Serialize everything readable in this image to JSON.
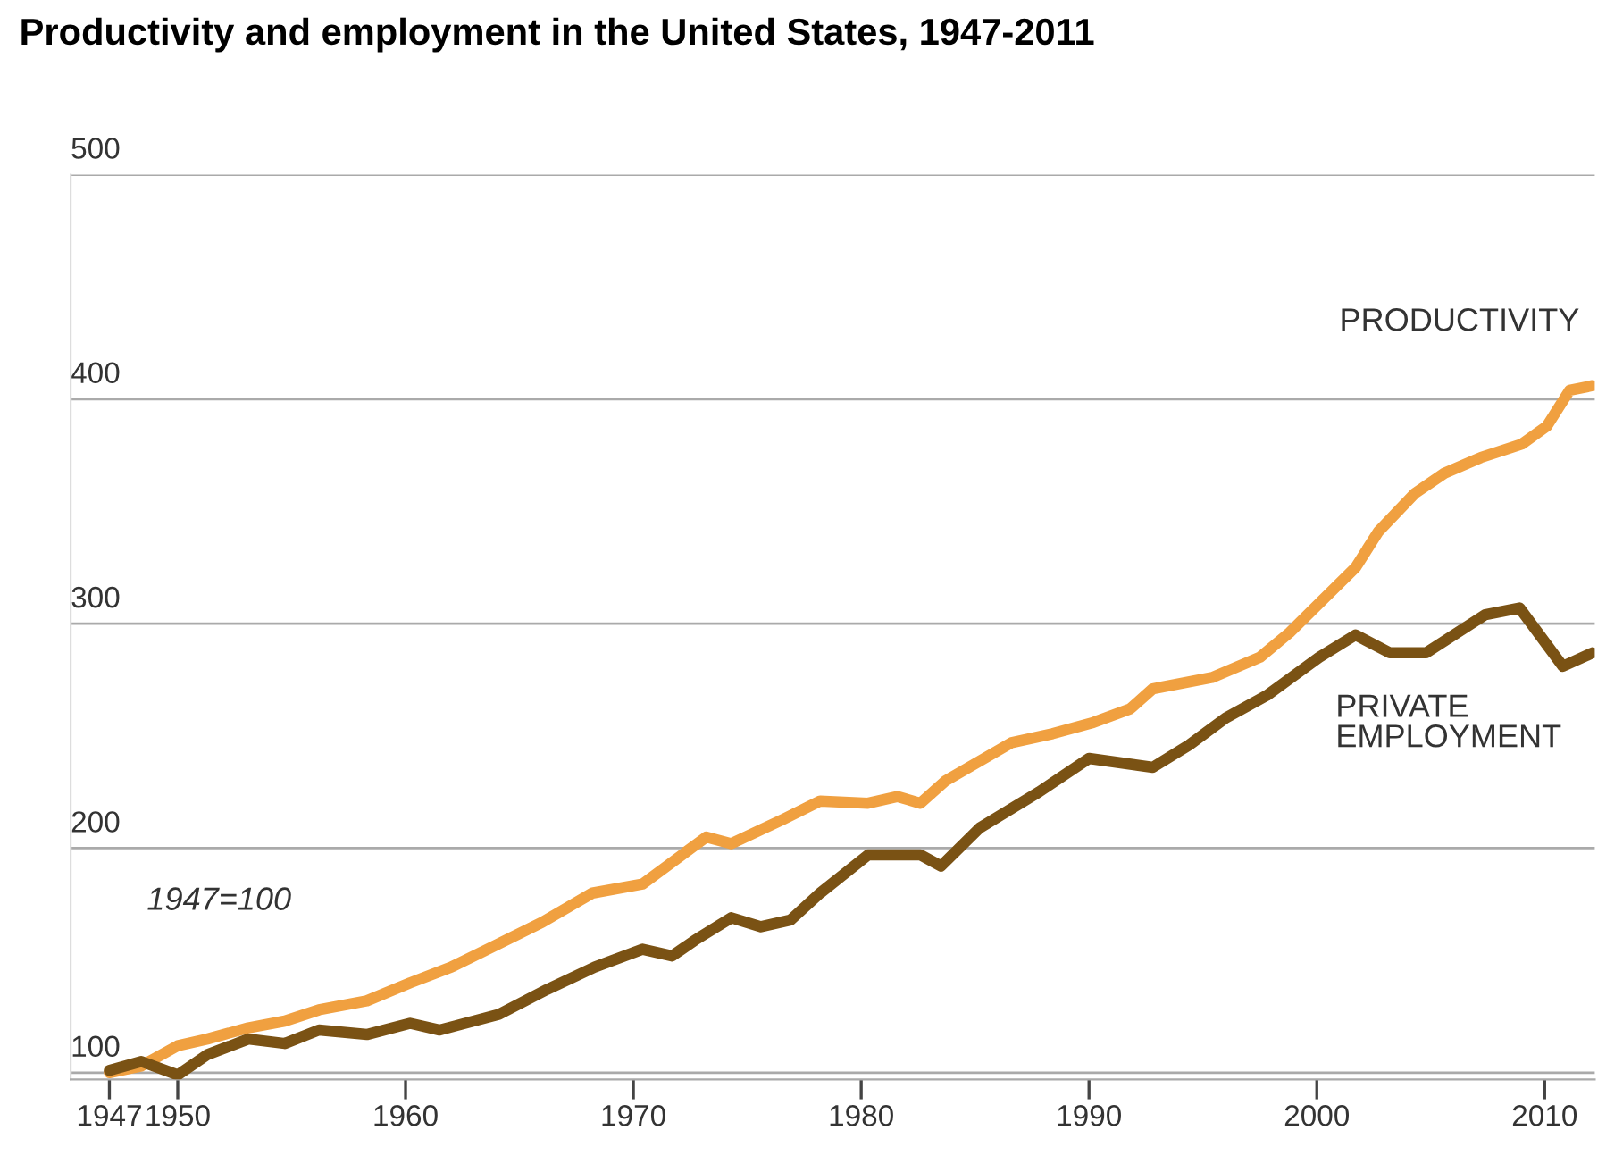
{
  "chart_data": {
    "type": "line",
    "title": "Productivity and employment in the United States, 1947-2011",
    "annotations": [
      "1947=100"
    ],
    "series": [
      {
        "name": "PRODUCTIVITY",
        "color": "#f0a040",
        "x": [
          1947,
          1948.4,
          1950.0,
          1951.3,
          1953.1,
          1954.7,
          1956.2,
          1958.3,
          1960.2,
          1962,
          1964,
          1966,
          1968.2,
          1970.4,
          1973.2,
          1974.3,
          1976.6,
          1978.2,
          1980.3,
          1981.6,
          1982.6,
          1983.7,
          1986.6,
          1988.4,
          1990.2,
          1991.8,
          1992.8,
          1995.4,
          1997.5,
          1998.8,
          2000.1,
          2001.7,
          2002.7,
          2004.3,
          2005.6,
          2007.2,
          2009,
          2010.1,
          2011.1,
          2012.1
        ],
        "values": [
          100,
          103,
          112,
          115,
          120,
          123,
          128,
          132,
          140,
          147,
          157,
          167,
          180,
          184,
          205,
          202,
          213,
          221,
          220,
          223,
          220,
          230,
          247,
          251,
          256,
          262,
          271,
          276,
          285,
          296,
          309,
          325,
          341,
          358,
          367,
          374,
          380,
          388,
          404,
          406
        ]
      },
      {
        "name": "PRIVATE EMPLOYMENT",
        "color": "#7a5214",
        "x": [
          1947,
          1948.4,
          1950.0,
          1951.3,
          1953.1,
          1954.7,
          1956.2,
          1958.3,
          1960.2,
          1961.5,
          1964.1,
          1966.2,
          1968.3,
          1970.4,
          1971.7,
          1972.7,
          1974.3,
          1975.6,
          1976.9,
          1978.2,
          1980.3,
          1982.6,
          1983.5,
          1985.2,
          1987.8,
          1990,
          1992.8,
          1994.4,
          1996,
          1997.8,
          2000.1,
          2001.7,
          2003.2,
          2004.8,
          2007.4,
          2008.9,
          2010.8,
          2012.1
        ],
        "values": [
          101,
          105,
          99,
          108,
          115,
          113,
          119,
          117,
          122,
          119,
          126,
          137,
          147,
          155,
          152,
          159,
          169,
          165,
          168,
          180,
          197,
          197,
          192,
          209,
          225,
          240,
          236,
          246,
          258,
          268,
          285,
          295,
          287,
          287,
          304,
          307,
          281,
          287
        ]
      }
    ],
    "xlim": [
      1945.3,
      2012.2
    ],
    "ylim": [
      97,
      500
    ],
    "xticks": [
      1947,
      1950,
      1960,
      1970,
      1980,
      1990,
      2000,
      2010
    ],
    "yticks": [
      100,
      200,
      300,
      400,
      500
    ],
    "grid": "y",
    "legend": false,
    "line_style": "solid",
    "marker": "none"
  }
}
